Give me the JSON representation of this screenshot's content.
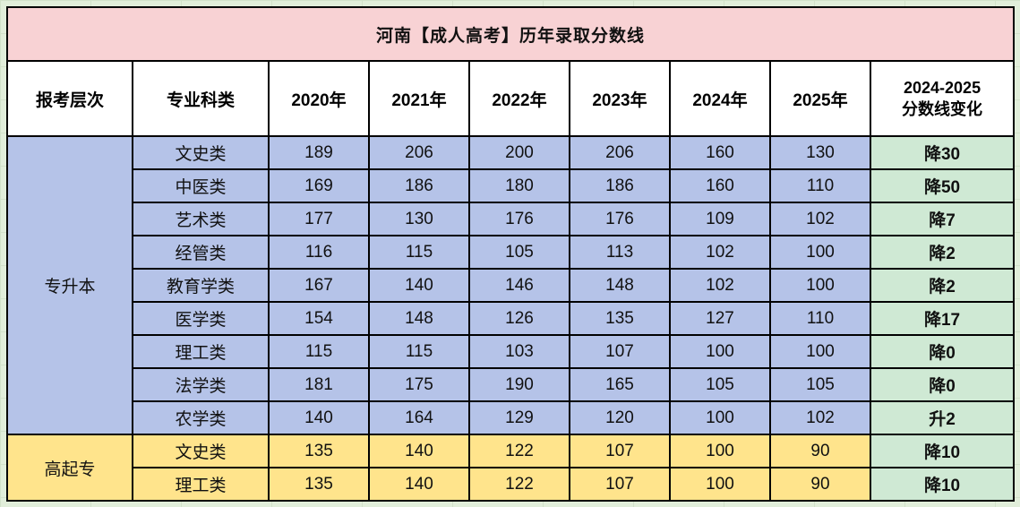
{
  "chart_data": {
    "type": "table",
    "title": "河南【成人高考】历年录取分数线",
    "columns": [
      "报考层次",
      "专业科类",
      "2020年",
      "2021年",
      "2022年",
      "2023年",
      "2024年",
      "2025年",
      "2024-2025\n分数线变化"
    ],
    "sections": [
      {
        "level": "专升本",
        "rows": [
          {
            "category": "文史类",
            "scores": [
              189,
              206,
              200,
              206,
              160,
              130
            ],
            "change": "降30"
          },
          {
            "category": "中医类",
            "scores": [
              169,
              186,
              180,
              186,
              160,
              110
            ],
            "change": "降50"
          },
          {
            "category": "艺术类",
            "scores": [
              177,
              130,
              176,
              176,
              109,
              102
            ],
            "change": "降7"
          },
          {
            "category": "经管类",
            "scores": [
              116,
              115,
              105,
              113,
              102,
              100
            ],
            "change": "降2"
          },
          {
            "category": "教育学类",
            "scores": [
              167,
              140,
              146,
              148,
              102,
              100
            ],
            "change": "降2"
          },
          {
            "category": "医学类",
            "scores": [
              154,
              148,
              126,
              135,
              127,
              110
            ],
            "change": "降17"
          },
          {
            "category": "理工类",
            "scores": [
              115,
              115,
              103,
              107,
              100,
              100
            ],
            "change": "降0"
          },
          {
            "category": "法学类",
            "scores": [
              181,
              175,
              190,
              165,
              105,
              105
            ],
            "change": "降0"
          },
          {
            "category": "农学类",
            "scores": [
              140,
              164,
              129,
              120,
              100,
              102
            ],
            "change": "升2"
          }
        ]
      },
      {
        "level": "高起专",
        "rows": [
          {
            "category": "文史类",
            "scores": [
              135,
              140,
              122,
              107,
              100,
              90
            ],
            "change": "降10"
          },
          {
            "category": "理工类",
            "scores": [
              135,
              140,
              122,
              107,
              100,
              90
            ],
            "change": "降10"
          }
        ]
      }
    ]
  },
  "colors": {
    "page_bg": "#e1eeda",
    "title_bg": "#f8d2d4",
    "title_text": "#4a68c4",
    "header_bg": "#ffffff",
    "level1_bg": "#b5c3e8",
    "level2_bg": "#ffe48c",
    "change_bg": "#cfe9d4",
    "red": "#e8000f",
    "border": "#000000"
  }
}
